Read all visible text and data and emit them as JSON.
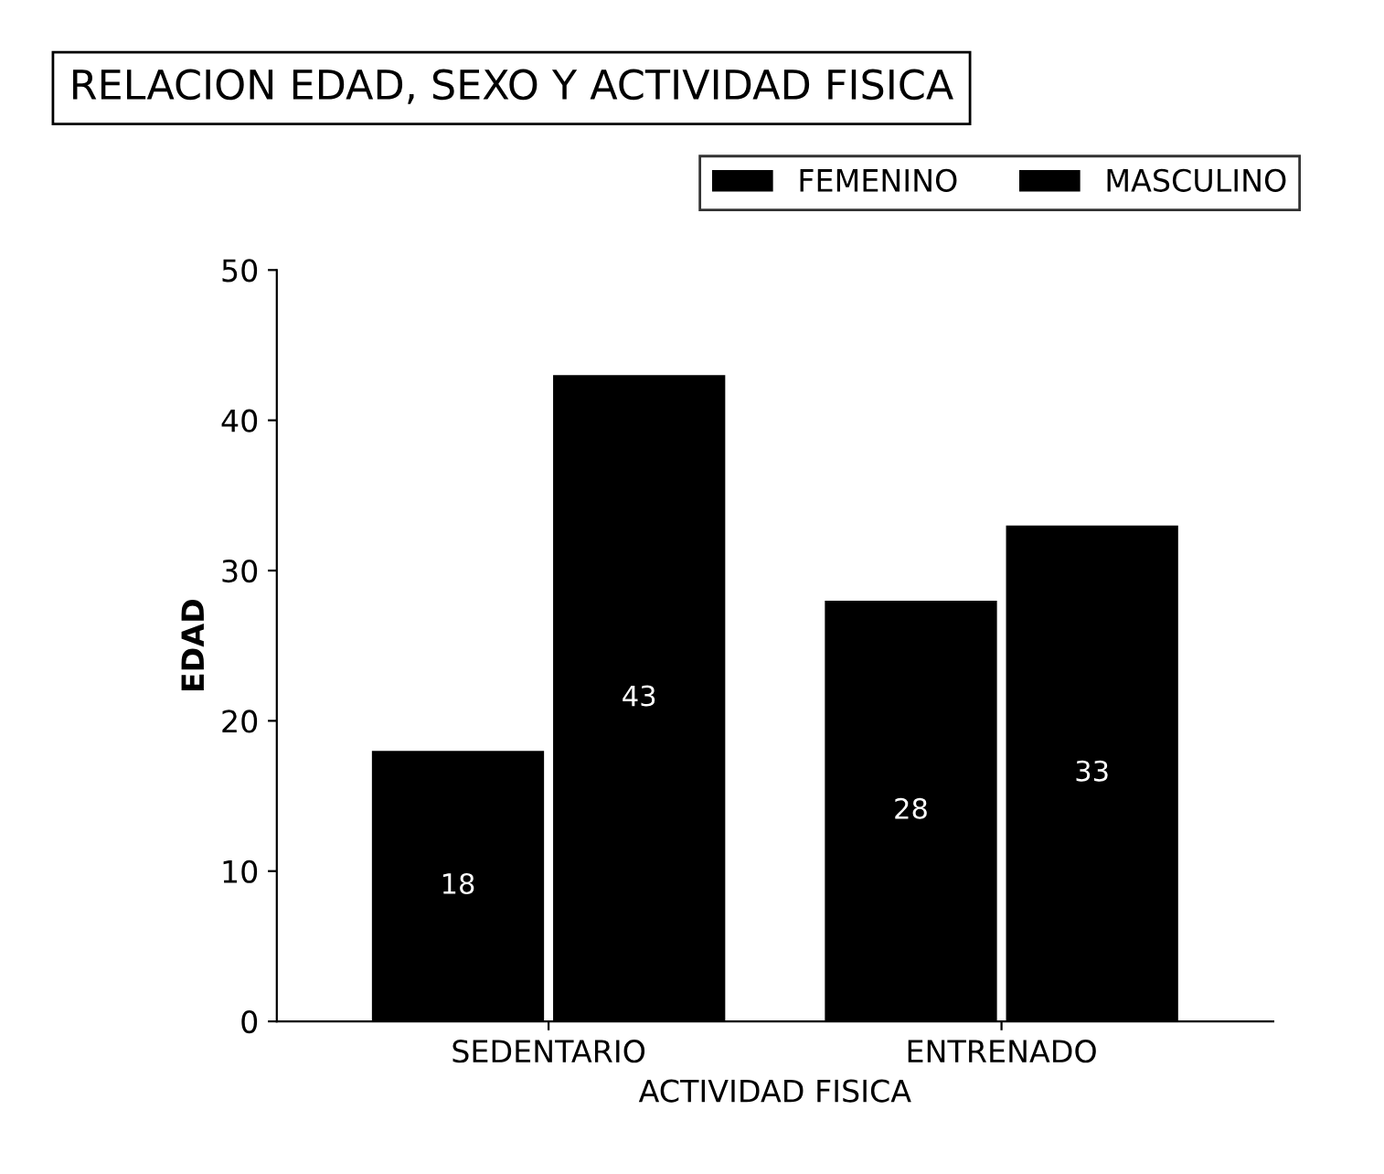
{
  "chart_data": {
    "type": "bar",
    "title": "RELACION EDAD, SEXO Y ACTIVIDAD FISICA",
    "xlabel": "ACTIVIDAD FISICA",
    "ylabel": "EDAD",
    "categories": [
      "SEDENTARIO",
      "ENTRENADO"
    ],
    "series": [
      {
        "name": "FEMENINO",
        "color": "#000000",
        "values": [
          18,
          28
        ]
      },
      {
        "name": "MASCULINO",
        "color": "#000000",
        "values": [
          43,
          33
        ]
      }
    ],
    "ylim": [
      0,
      50
    ],
    "yticks": [
      0,
      10,
      20,
      30,
      40,
      50
    ],
    "data_labels": true,
    "legend": "top right",
    "grid": false
  }
}
